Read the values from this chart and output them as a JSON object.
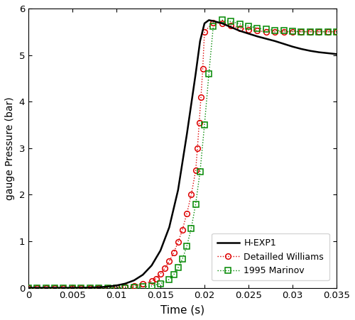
{
  "title": "",
  "xlabel": "Time (s)",
  "ylabel": "gauge Pressure (bar)",
  "xlim": [
    0,
    0.035
  ],
  "ylim": [
    0,
    6
  ],
  "xticks": [
    0,
    0.005,
    0.01,
    0.015,
    0.02,
    0.025,
    0.03,
    0.035
  ],
  "yticks": [
    0,
    1,
    2,
    3,
    4,
    5,
    6
  ],
  "hexp1_color": "#000000",
  "williams_color": "#dd0000",
  "marinov_color": "#008800",
  "hexp1_x": [
    0.0,
    0.0005,
    0.001,
    0.002,
    0.003,
    0.004,
    0.005,
    0.006,
    0.007,
    0.008,
    0.009,
    0.01,
    0.011,
    0.012,
    0.013,
    0.014,
    0.015,
    0.016,
    0.017,
    0.018,
    0.019,
    0.0195,
    0.02,
    0.0205,
    0.021,
    0.022,
    0.023,
    0.024,
    0.025,
    0.026,
    0.027,
    0.028,
    0.029,
    0.03,
    0.031,
    0.032,
    0.033,
    0.034,
    0.035
  ],
  "hexp1_y": [
    0.0,
    0.0,
    0.0,
    0.0,
    0.0,
    0.0,
    0.0,
    0.002,
    0.005,
    0.012,
    0.025,
    0.05,
    0.09,
    0.16,
    0.28,
    0.48,
    0.8,
    1.3,
    2.1,
    3.3,
    4.6,
    5.3,
    5.68,
    5.75,
    5.73,
    5.68,
    5.6,
    5.52,
    5.46,
    5.4,
    5.35,
    5.3,
    5.24,
    5.18,
    5.13,
    5.09,
    5.06,
    5.04,
    5.02
  ],
  "williams_x": [
    0.0,
    0.001,
    0.002,
    0.003,
    0.004,
    0.005,
    0.006,
    0.007,
    0.008,
    0.009,
    0.01,
    0.011,
    0.012,
    0.013,
    0.014,
    0.0145,
    0.015,
    0.0155,
    0.016,
    0.0165,
    0.017,
    0.0175,
    0.018,
    0.0185,
    0.019,
    0.0192,
    0.0194,
    0.0196,
    0.0198,
    0.02,
    0.021,
    0.022,
    0.023,
    0.024,
    0.025,
    0.026,
    0.027,
    0.028,
    0.029,
    0.03,
    0.031,
    0.032,
    0.033,
    0.034,
    0.035
  ],
  "williams_y": [
    0.0,
    0.0,
    0.0,
    0.0,
    0.0,
    0.0,
    0.0,
    0.0,
    0.0,
    0.0,
    0.01,
    0.02,
    0.04,
    0.08,
    0.14,
    0.2,
    0.3,
    0.42,
    0.57,
    0.75,
    0.98,
    1.25,
    1.6,
    2.0,
    2.52,
    3.0,
    3.55,
    4.1,
    4.7,
    5.5,
    5.7,
    5.68,
    5.63,
    5.58,
    5.54,
    5.52,
    5.5,
    5.5,
    5.5,
    5.5,
    5.5,
    5.5,
    5.5,
    5.5,
    5.5
  ],
  "williams_marker_x": [
    0.0,
    0.001,
    0.002,
    0.003,
    0.004,
    0.005,
    0.006,
    0.007,
    0.008,
    0.009,
    0.01,
    0.011,
    0.012,
    0.013,
    0.014,
    0.0145,
    0.015,
    0.0155,
    0.016,
    0.0165,
    0.017,
    0.0175,
    0.018,
    0.0185,
    0.019,
    0.0192,
    0.0194,
    0.0196,
    0.0198,
    0.02,
    0.021,
    0.022,
    0.023,
    0.024,
    0.025,
    0.026,
    0.027,
    0.028,
    0.029,
    0.03,
    0.031,
    0.032,
    0.033,
    0.034,
    0.035
  ],
  "williams_marker_y": [
    0.0,
    0.0,
    0.0,
    0.0,
    0.0,
    0.0,
    0.0,
    0.0,
    0.0,
    0.0,
    0.01,
    0.02,
    0.04,
    0.08,
    0.14,
    0.2,
    0.3,
    0.42,
    0.57,
    0.75,
    0.98,
    1.25,
    1.6,
    2.0,
    2.52,
    3.0,
    3.55,
    4.1,
    4.7,
    5.5,
    5.7,
    5.68,
    5.63,
    5.58,
    5.54,
    5.52,
    5.5,
    5.5,
    5.5,
    5.5,
    5.5,
    5.5,
    5.5,
    5.5,
    5.5
  ],
  "marinov_x": [
    0.0,
    0.001,
    0.002,
    0.003,
    0.004,
    0.005,
    0.006,
    0.007,
    0.008,
    0.009,
    0.01,
    0.011,
    0.012,
    0.013,
    0.014,
    0.015,
    0.016,
    0.0165,
    0.017,
    0.0175,
    0.018,
    0.0185,
    0.019,
    0.0195,
    0.02,
    0.0205,
    0.021,
    0.022,
    0.023,
    0.024,
    0.025,
    0.026,
    0.027,
    0.028,
    0.029,
    0.03,
    0.031,
    0.032,
    0.033,
    0.034,
    0.035
  ],
  "marinov_y": [
    0.0,
    0.0,
    0.0,
    0.0,
    0.0,
    0.0,
    0.0,
    0.0,
    0.0,
    0.0,
    0.0,
    0.0,
    0.01,
    0.02,
    0.04,
    0.09,
    0.18,
    0.28,
    0.43,
    0.62,
    0.9,
    1.28,
    1.8,
    2.5,
    3.5,
    4.6,
    5.62,
    5.75,
    5.72,
    5.67,
    5.62,
    5.58,
    5.55,
    5.53,
    5.52,
    5.51,
    5.5,
    5.5,
    5.5,
    5.5,
    5.5
  ],
  "marinov_marker_x": [
    0.0,
    0.001,
    0.002,
    0.003,
    0.004,
    0.005,
    0.006,
    0.007,
    0.008,
    0.009,
    0.01,
    0.011,
    0.012,
    0.013,
    0.014,
    0.015,
    0.016,
    0.0165,
    0.017,
    0.0175,
    0.018,
    0.0185,
    0.019,
    0.0195,
    0.02,
    0.0205,
    0.021,
    0.022,
    0.023,
    0.024,
    0.025,
    0.026,
    0.027,
    0.028,
    0.029,
    0.03,
    0.031,
    0.032,
    0.033,
    0.034,
    0.035
  ],
  "marinov_marker_y": [
    0.0,
    0.0,
    0.0,
    0.0,
    0.0,
    0.0,
    0.0,
    0.0,
    0.0,
    0.0,
    0.0,
    0.0,
    0.01,
    0.02,
    0.04,
    0.09,
    0.18,
    0.28,
    0.43,
    0.62,
    0.9,
    1.28,
    1.8,
    2.5,
    3.5,
    4.6,
    5.62,
    5.75,
    5.72,
    5.67,
    5.62,
    5.58,
    5.55,
    5.53,
    5.52,
    5.51,
    5.5,
    5.5,
    5.5,
    5.5,
    5.5
  ]
}
